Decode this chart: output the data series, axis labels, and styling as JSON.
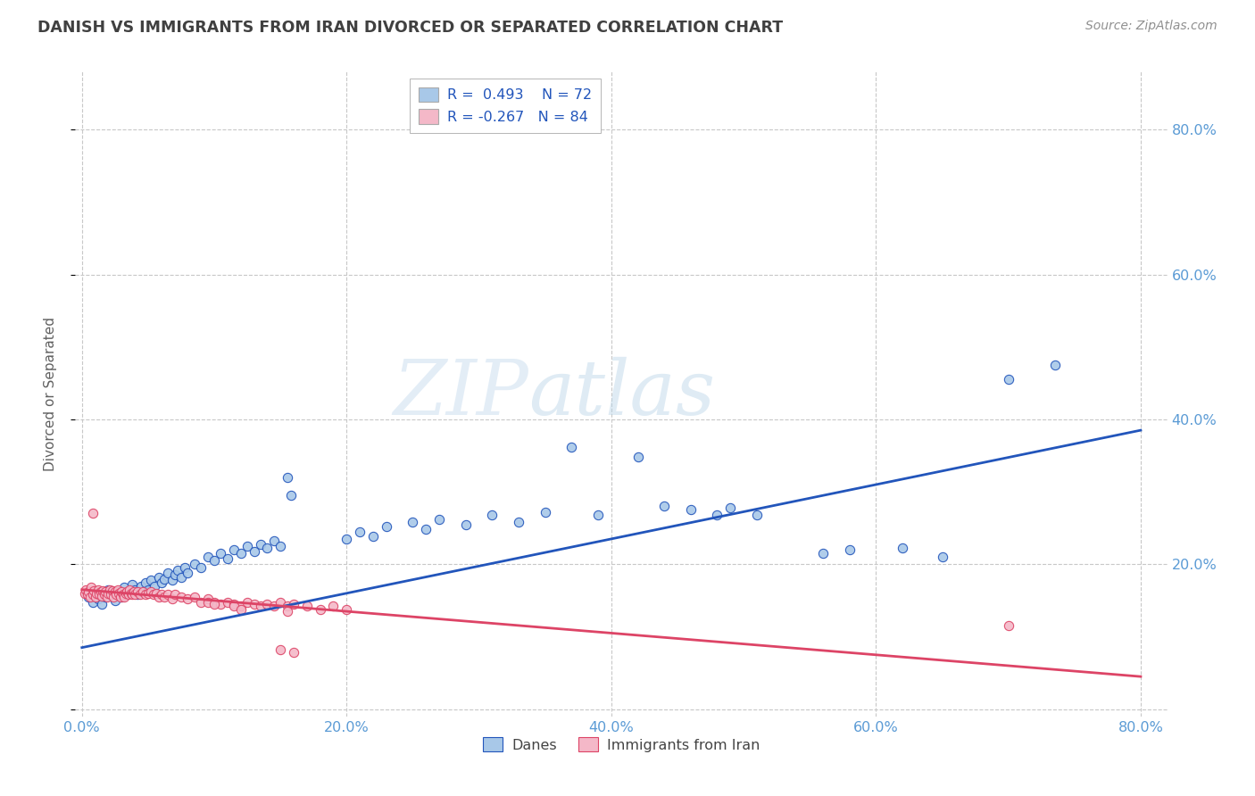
{
  "title": "DANISH VS IMMIGRANTS FROM IRAN DIVORCED OR SEPARATED CORRELATION CHART",
  "source": "Source: ZipAtlas.com",
  "ylabel": "Divorced or Separated",
  "xlim": [
    -0.005,
    0.82
  ],
  "ylim": [
    -0.01,
    0.88
  ],
  "yticks": [
    0.0,
    0.2,
    0.4,
    0.6,
    0.8
  ],
  "xticks": [
    0.0,
    0.2,
    0.4,
    0.6,
    0.8
  ],
  "ytick_labels": [
    "",
    "20.0%",
    "40.0%",
    "60.0%",
    "80.0%"
  ],
  "xtick_labels": [
    "0.0%",
    "20.0%",
    "40.0%",
    "60.0%",
    "80.0%"
  ],
  "blue_R": 0.493,
  "blue_N": 72,
  "pink_R": -0.267,
  "pink_N": 84,
  "legend_labels": [
    "Danes",
    "Immigrants from Iran"
  ],
  "blue_color": "#a8c8e8",
  "pink_color": "#f4b8c8",
  "blue_line_color": "#2255bb",
  "pink_line_color": "#dd4466",
  "title_color": "#404040",
  "axis_color": "#5b9bd5",
  "grid_color": "#c8c8c8",
  "blue_line": [
    0.0,
    0.085,
    0.8,
    0.385
  ],
  "pink_line": [
    0.0,
    0.165,
    0.8,
    0.045
  ],
  "blue_scatter": [
    [
      0.005,
      0.155
    ],
    [
      0.008,
      0.148
    ],
    [
      0.01,
      0.16
    ],
    [
      0.012,
      0.152
    ],
    [
      0.015,
      0.145
    ],
    [
      0.018,
      0.155
    ],
    [
      0.02,
      0.165
    ],
    [
      0.022,
      0.158
    ],
    [
      0.025,
      0.15
    ],
    [
      0.028,
      0.162
    ],
    [
      0.03,
      0.155
    ],
    [
      0.032,
      0.168
    ],
    [
      0.035,
      0.16
    ],
    [
      0.038,
      0.172
    ],
    [
      0.04,
      0.165
    ],
    [
      0.042,
      0.158
    ],
    [
      0.045,
      0.17
    ],
    [
      0.048,
      0.175
    ],
    [
      0.05,
      0.165
    ],
    [
      0.052,
      0.178
    ],
    [
      0.055,
      0.17
    ],
    [
      0.058,
      0.182
    ],
    [
      0.06,
      0.175
    ],
    [
      0.062,
      0.18
    ],
    [
      0.065,
      0.188
    ],
    [
      0.068,
      0.178
    ],
    [
      0.07,
      0.185
    ],
    [
      0.072,
      0.192
    ],
    [
      0.075,
      0.182
    ],
    [
      0.078,
      0.195
    ],
    [
      0.08,
      0.188
    ],
    [
      0.085,
      0.2
    ],
    [
      0.09,
      0.195
    ],
    [
      0.095,
      0.21
    ],
    [
      0.1,
      0.205
    ],
    [
      0.105,
      0.215
    ],
    [
      0.11,
      0.208
    ],
    [
      0.115,
      0.22
    ],
    [
      0.12,
      0.215
    ],
    [
      0.125,
      0.225
    ],
    [
      0.13,
      0.218
    ],
    [
      0.135,
      0.228
    ],
    [
      0.14,
      0.222
    ],
    [
      0.145,
      0.232
    ],
    [
      0.15,
      0.225
    ],
    [
      0.155,
      0.32
    ],
    [
      0.158,
      0.295
    ],
    [
      0.2,
      0.235
    ],
    [
      0.21,
      0.245
    ],
    [
      0.22,
      0.238
    ],
    [
      0.23,
      0.252
    ],
    [
      0.25,
      0.258
    ],
    [
      0.26,
      0.248
    ],
    [
      0.27,
      0.262
    ],
    [
      0.29,
      0.255
    ],
    [
      0.31,
      0.268
    ],
    [
      0.33,
      0.258
    ],
    [
      0.35,
      0.272
    ],
    [
      0.37,
      0.362
    ],
    [
      0.39,
      0.268
    ],
    [
      0.42,
      0.348
    ],
    [
      0.44,
      0.28
    ],
    [
      0.46,
      0.275
    ],
    [
      0.48,
      0.268
    ],
    [
      0.49,
      0.278
    ],
    [
      0.51,
      0.268
    ],
    [
      0.56,
      0.215
    ],
    [
      0.58,
      0.22
    ],
    [
      0.62,
      0.222
    ],
    [
      0.65,
      0.21
    ],
    [
      0.7,
      0.455
    ],
    [
      0.735,
      0.475
    ]
  ],
  "pink_scatter": [
    [
      0.002,
      0.16
    ],
    [
      0.003,
      0.165
    ],
    [
      0.004,
      0.158
    ],
    [
      0.005,
      0.162
    ],
    [
      0.006,
      0.155
    ],
    [
      0.007,
      0.168
    ],
    [
      0.008,
      0.158
    ],
    [
      0.009,
      0.163
    ],
    [
      0.01,
      0.155
    ],
    [
      0.011,
      0.16
    ],
    [
      0.012,
      0.165
    ],
    [
      0.013,
      0.158
    ],
    [
      0.014,
      0.162
    ],
    [
      0.015,
      0.156
    ],
    [
      0.016,
      0.163
    ],
    [
      0.017,
      0.158
    ],
    [
      0.018,
      0.162
    ],
    [
      0.019,
      0.155
    ],
    [
      0.02,
      0.16
    ],
    [
      0.021,
      0.165
    ],
    [
      0.022,
      0.158
    ],
    [
      0.023,
      0.163
    ],
    [
      0.024,
      0.155
    ],
    [
      0.025,
      0.162
    ],
    [
      0.026,
      0.158
    ],
    [
      0.027,
      0.165
    ],
    [
      0.028,
      0.16
    ],
    [
      0.029,
      0.155
    ],
    [
      0.03,
      0.162
    ],
    [
      0.031,
      0.158
    ],
    [
      0.032,
      0.155
    ],
    [
      0.033,
      0.16
    ],
    [
      0.034,
      0.162
    ],
    [
      0.035,
      0.158
    ],
    [
      0.036,
      0.165
    ],
    [
      0.037,
      0.16
    ],
    [
      0.038,
      0.158
    ],
    [
      0.039,
      0.162
    ],
    [
      0.04,
      0.158
    ],
    [
      0.042,
      0.162
    ],
    [
      0.044,
      0.158
    ],
    [
      0.046,
      0.162
    ],
    [
      0.048,
      0.158
    ],
    [
      0.05,
      0.16
    ],
    [
      0.052,
      0.162
    ],
    [
      0.054,
      0.158
    ],
    [
      0.056,
      0.16
    ],
    [
      0.058,
      0.155
    ],
    [
      0.06,
      0.158
    ],
    [
      0.062,
      0.155
    ],
    [
      0.065,
      0.158
    ],
    [
      0.068,
      0.152
    ],
    [
      0.07,
      0.158
    ],
    [
      0.075,
      0.155
    ],
    [
      0.08,
      0.152
    ],
    [
      0.085,
      0.155
    ],
    [
      0.09,
      0.148
    ],
    [
      0.095,
      0.152
    ],
    [
      0.1,
      0.148
    ],
    [
      0.105,
      0.145
    ],
    [
      0.11,
      0.148
    ],
    [
      0.115,
      0.145
    ],
    [
      0.12,
      0.142
    ],
    [
      0.125,
      0.148
    ],
    [
      0.13,
      0.145
    ],
    [
      0.135,
      0.142
    ],
    [
      0.14,
      0.145
    ],
    [
      0.145,
      0.142
    ],
    [
      0.15,
      0.148
    ],
    [
      0.155,
      0.142
    ],
    [
      0.16,
      0.145
    ],
    [
      0.17,
      0.142
    ],
    [
      0.18,
      0.138
    ],
    [
      0.19,
      0.142
    ],
    [
      0.2,
      0.138
    ],
    [
      0.008,
      0.27
    ],
    [
      0.095,
      0.148
    ],
    [
      0.1,
      0.145
    ],
    [
      0.115,
      0.142
    ],
    [
      0.12,
      0.138
    ],
    [
      0.15,
      0.082
    ],
    [
      0.155,
      0.135
    ],
    [
      0.16,
      0.078
    ],
    [
      0.7,
      0.115
    ]
  ]
}
